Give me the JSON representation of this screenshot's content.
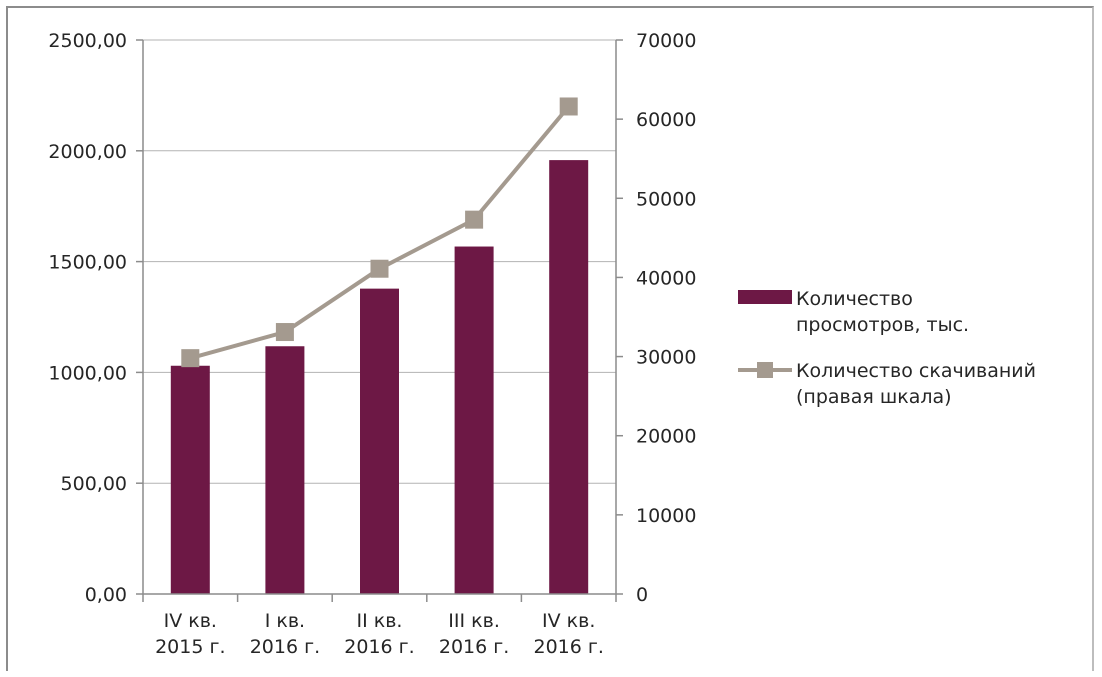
{
  "chart_data": {
    "type": "bar",
    "categories": [
      [
        "IV кв.",
        "2015 г."
      ],
      [
        "I кв.",
        "2016 г."
      ],
      [
        "II кв.",
        "2016 г."
      ],
      [
        "III кв.",
        "2016 г."
      ],
      [
        "IV кв.",
        "2016 г."
      ]
    ],
    "series": [
      {
        "name": [
          "Количество",
          "просмотров, тыс."
        ],
        "type": "bar",
        "axis": "left",
        "values": [
          1030,
          1118,
          1378,
          1568,
          1958
        ]
      },
      {
        "name": [
          "Количество скачиваний",
          "(правая шкала)"
        ],
        "type": "line",
        "axis": "right",
        "marker": "square",
        "values": [
          29800,
          33100,
          41100,
          47300,
          61600
        ]
      }
    ],
    "y_left": {
      "range": [
        0,
        2500
      ],
      "ticks": [
        "0,00",
        "500,00",
        "1000,00",
        "1500,00",
        "2000,00",
        "2500,00"
      ]
    },
    "y_right": {
      "range": [
        0,
        70000
      ],
      "ticks": [
        "0",
        "10000",
        "20000",
        "30000",
        "40000",
        "50000",
        "60000",
        "70000"
      ]
    },
    "grid": true,
    "legend": "right",
    "colors": {
      "bar": "#6d1845",
      "line": "#a49a8f",
      "grid": "#b3b3b3",
      "axis": "#8c8c8c"
    }
  }
}
